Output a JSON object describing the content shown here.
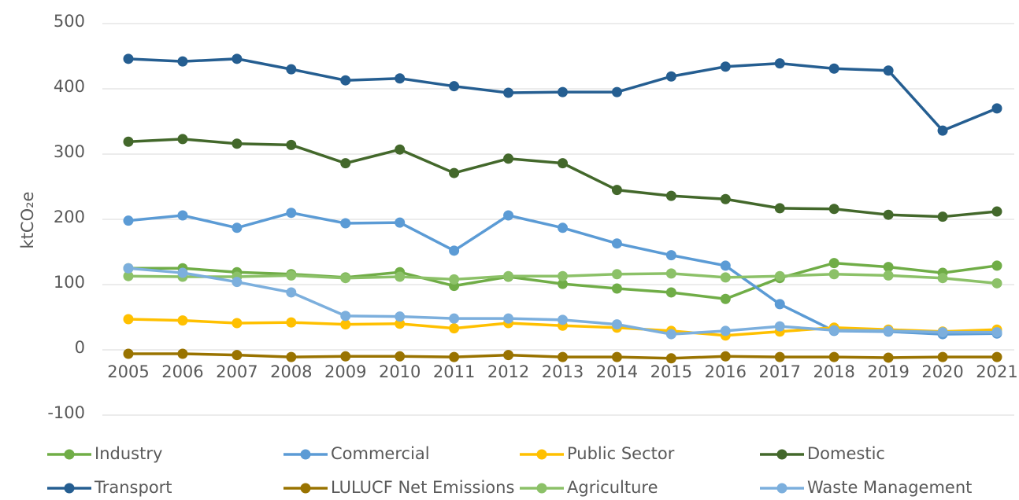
{
  "chart_data": {
    "type": "line",
    "y_label": "ktCO₂e",
    "x": [
      "2005",
      "2006",
      "2007",
      "2008",
      "2009",
      "2010",
      "2011",
      "2012",
      "2013",
      "2014",
      "2015",
      "2016",
      "2017",
      "2018",
      "2019",
      "2020",
      "2021"
    ],
    "ylim": [
      -100,
      500
    ],
    "yticks": [
      -100,
      0,
      100,
      200,
      300,
      400,
      500
    ],
    "grid": true,
    "series": [
      {
        "name": "Industry",
        "color": "#70ad47",
        "values": [
          125,
          125,
          119,
          116,
          111,
          119,
          98,
          112,
          101,
          94,
          88,
          78,
          110,
          133,
          127,
          118,
          129
        ]
      },
      {
        "name": "Commercial",
        "color": "#5b9bd5",
        "values": [
          198,
          206,
          187,
          210,
          194,
          195,
          152,
          206,
          187,
          163,
          145,
          129,
          70,
          29,
          28,
          24,
          25
        ]
      },
      {
        "name": "Public Sector",
        "color": "#ffc000",
        "values": [
          47,
          45,
          41,
          42,
          39,
          40,
          33,
          41,
          37,
          34,
          29,
          22,
          28,
          34,
          31,
          28,
          31
        ]
      },
      {
        "name": "Domestic",
        "color": "#43682b",
        "values": [
          319,
          323,
          316,
          314,
          286,
          307,
          271,
          293,
          286,
          245,
          236,
          231,
          217,
          216,
          207,
          204,
          212
        ]
      },
      {
        "name": "Transport",
        "color": "#255e91",
        "values": [
          446,
          442,
          446,
          430,
          413,
          416,
          404,
          394,
          395,
          395,
          419,
          434,
          439,
          431,
          428,
          336,
          370
        ]
      },
      {
        "name": "LULUCF Net Emissions",
        "color": "#997300",
        "values": [
          -6,
          -6,
          -8,
          -11,
          -10,
          -10,
          -11,
          -8,
          -11,
          -11,
          -13,
          -10,
          -11,
          -11,
          -12,
          -11,
          -11
        ]
      },
      {
        "name": "Agriculture",
        "color": "#8cc168",
        "values": [
          113,
          112,
          112,
          114,
          110,
          112,
          108,
          113,
          113,
          116,
          117,
          111,
          113,
          116,
          114,
          110,
          102
        ]
      },
      {
        "name": "Waste Management",
        "color": "#7cafdd",
        "values": [
          125,
          118,
          104,
          88,
          52,
          51,
          48,
          48,
          46,
          39,
          24,
          29,
          36,
          30,
          29,
          27,
          27
        ]
      }
    ]
  }
}
